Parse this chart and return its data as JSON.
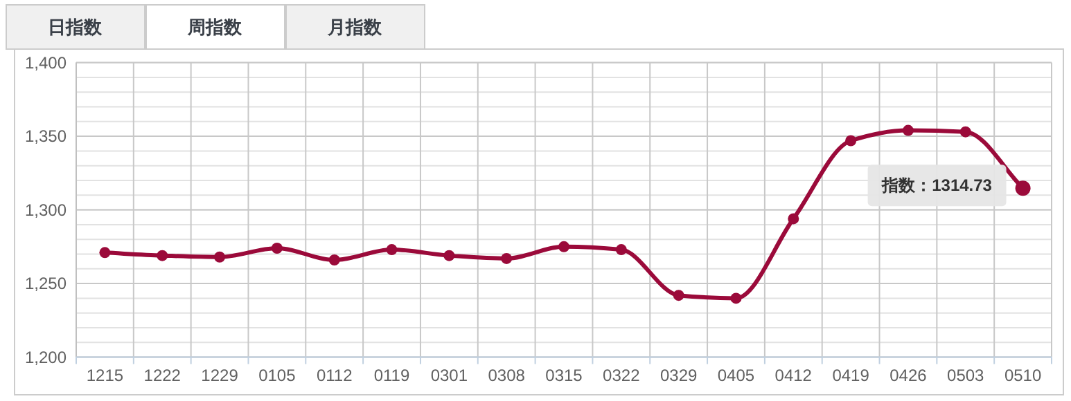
{
  "chart_data": {
    "type": "line",
    "categories": [
      "1215",
      "1222",
      "1229",
      "0105",
      "0112",
      "0119",
      "0301",
      "0308",
      "0315",
      "0322",
      "0329",
      "0405",
      "0412",
      "0419",
      "0426",
      "0503",
      "0510"
    ],
    "series": [
      {
        "color": "#9b0a3a",
        "values": [
          1271,
          1269,
          1268,
          1274,
          1266,
          1273,
          1269,
          1267,
          1275,
          1273,
          1242,
          1240,
          1294,
          1347,
          1354,
          1353,
          1314.73
        ]
      }
    ],
    "ylim": [
      1200,
      1400
    ],
    "yticks": [
      {
        "value": 1200,
        "label": "1,200"
      },
      {
        "value": 1250,
        "label": "1,250"
      },
      {
        "value": 1300,
        "label": "1,300"
      },
      {
        "value": 1350,
        "label": "1,350"
      },
      {
        "value": 1400,
        "label": "1,400"
      }
    ],
    "grid": true,
    "marker": "circle",
    "line_style": "solid",
    "annotations": [
      "日指数",
      "周指数",
      "月指数",
      {
        "text": "指数：1314.73",
        "x": "0510",
        "y": 1314.73
      }
    ]
  }
}
